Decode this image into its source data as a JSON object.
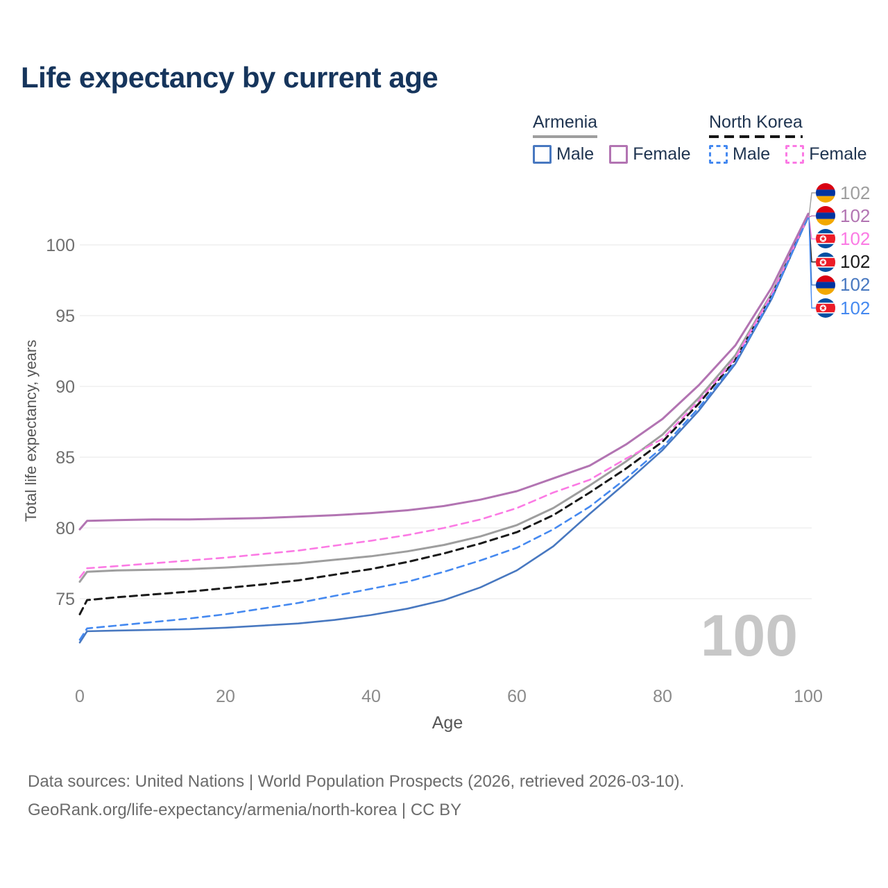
{
  "title": "Life expectancy by current age",
  "legend": {
    "groups": [
      {
        "label": "Armenia",
        "line_style": "solid",
        "underline_color": "#9e9e9e",
        "items": [
          {
            "label": "Male",
            "color": "#4878c0",
            "dashed": false
          },
          {
            "label": "Female",
            "color": "#b274b2",
            "dashed": false
          }
        ]
      },
      {
        "label": "North Korea",
        "line_style": "dashed",
        "underline_color": "#151515",
        "items": [
          {
            "label": "Male",
            "color": "#4589f0",
            "dashed": true
          },
          {
            "label": "Female",
            "color": "#fb7ae4",
            "dashed": true
          }
        ]
      }
    ]
  },
  "chart_data": {
    "type": "line",
    "title": "Life expectancy by current age",
    "xlabel": "Age",
    "ylabel": "Total life expectancy, years",
    "x_ticks": [
      0,
      20,
      40,
      60,
      80,
      100
    ],
    "y_ticks": [
      75,
      80,
      85,
      90,
      95,
      100
    ],
    "xlim": [
      0,
      100
    ],
    "ylim": [
      71.5,
      102.5
    ],
    "grid": "horizontal",
    "watermark": "100",
    "x": [
      0,
      1,
      5,
      10,
      15,
      20,
      25,
      30,
      35,
      40,
      45,
      50,
      55,
      60,
      65,
      70,
      75,
      80,
      85,
      90,
      95,
      100
    ],
    "series": [
      {
        "id": "armenia-both",
        "name": "Armenia — Both sexes",
        "country": "Armenia",
        "sex": "Both",
        "color": "#9e9e9e",
        "dashed": false,
        "width": 3,
        "values": [
          76.2,
          76.9,
          77.0,
          77.05,
          77.1,
          77.2,
          77.35,
          77.5,
          77.75,
          78.0,
          78.35,
          78.8,
          79.4,
          80.2,
          81.4,
          83.0,
          84.7,
          86.6,
          89.2,
          92.2,
          96.6,
          102
        ]
      },
      {
        "id": "armenia-male",
        "name": "Armenia — Male",
        "country": "Armenia",
        "sex": "Male",
        "color": "#4878c0",
        "dashed": false,
        "width": 2.6,
        "values": [
          71.9,
          72.7,
          72.75,
          72.8,
          72.85,
          72.95,
          73.1,
          73.25,
          73.5,
          73.85,
          74.3,
          74.9,
          75.8,
          77.0,
          78.7,
          81.0,
          83.2,
          85.5,
          88.3,
          91.6,
          96.2,
          102
        ]
      },
      {
        "id": "north-korea-both",
        "name": "North Korea — Both sexes",
        "country": "North Korea",
        "sex": "Both",
        "color": "#1a1a1a",
        "dashed": true,
        "width": 3,
        "values": [
          73.9,
          74.9,
          75.1,
          75.3,
          75.5,
          75.75,
          76.0,
          76.3,
          76.7,
          77.1,
          77.6,
          78.2,
          78.9,
          79.7,
          80.9,
          82.5,
          84.2,
          86.1,
          88.8,
          91.9,
          96.4,
          102
        ]
      },
      {
        "id": "north-korea-female",
        "name": "North Korea — Female",
        "country": "North Korea",
        "sex": "Female",
        "color": "#fb7ae4",
        "dashed": true,
        "width": 2.6,
        "values": [
          76.5,
          77.15,
          77.3,
          77.5,
          77.7,
          77.9,
          78.15,
          78.4,
          78.75,
          79.1,
          79.5,
          80.0,
          80.6,
          81.4,
          82.5,
          83.4,
          84.9,
          86.3,
          89.0,
          92.0,
          96.5,
          102
        ]
      },
      {
        "id": "north-korea-male",
        "name": "North Korea — Male",
        "country": "North Korea",
        "sex": "Male",
        "color": "#4589f0",
        "dashed": true,
        "width": 2.6,
        "values": [
          72.1,
          72.9,
          73.1,
          73.35,
          73.6,
          73.9,
          74.3,
          74.7,
          75.2,
          75.7,
          76.2,
          76.9,
          77.7,
          78.6,
          79.9,
          81.5,
          83.5,
          85.7,
          88.5,
          91.7,
          96.3,
          102
        ]
      },
      {
        "id": "armenia-female",
        "name": "Armenia — Female",
        "country": "Armenia",
        "sex": "Female",
        "color": "#b274b2",
        "dashed": false,
        "width": 3,
        "values": [
          79.9,
          80.5,
          80.55,
          80.6,
          80.6,
          80.65,
          80.7,
          80.8,
          80.9,
          81.05,
          81.25,
          81.55,
          82.0,
          82.6,
          83.5,
          84.4,
          85.9,
          87.7,
          90.1,
          92.9,
          97.0,
          102.2
        ]
      }
    ],
    "end_labels": [
      {
        "id": "armenia-both",
        "flag": "armenia",
        "value": "102",
        "color": "#9e9e9e"
      },
      {
        "id": "armenia-female",
        "flag": "armenia",
        "value": "102",
        "color": "#b274b2"
      },
      {
        "id": "north-korea-female",
        "flag": "north-korea",
        "value": "102",
        "color": "#fb7ae4"
      },
      {
        "id": "north-korea-both",
        "flag": "north-korea",
        "value": "102",
        "color": "#1a1a1a"
      },
      {
        "id": "armenia-male",
        "flag": "armenia",
        "value": "102",
        "color": "#4878c0"
      },
      {
        "id": "north-korea-male",
        "flag": "north-korea",
        "value": "102",
        "color": "#4589f0"
      }
    ]
  },
  "footer": {
    "line1": "Data sources: United Nations | World Population Prospects (2026, retrieved 2026-03-10).",
    "line2": "GeoRank.org/life-expectancy/armenia/north-korea | CC BY"
  }
}
